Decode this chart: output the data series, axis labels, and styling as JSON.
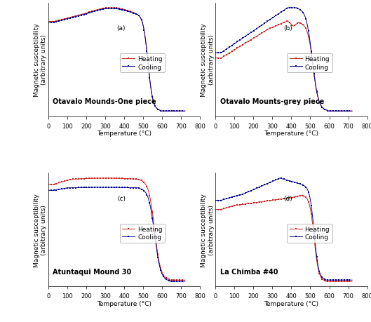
{
  "panels": [
    {
      "label": "(a)",
      "title": "Otavalo Mounds-One piece",
      "heating_color": "#cc2222",
      "cooling_color": "#00008b"
    },
    {
      "label": "(b)",
      "title": "Otavalo Mounts-grey piece",
      "heating_color": "#cc2222",
      "cooling_color": "#00008b"
    },
    {
      "label": "(c)",
      "title": "Atuntaqui Mound 30",
      "heating_color": "#cc2222",
      "cooling_color": "#00008b"
    },
    {
      "label": "(d)",
      "title": "La Chimba #40",
      "heating_color": "#cc2222",
      "cooling_color": "#00008b"
    }
  ],
  "xlabel": "Temperature (°C)",
  "ylabel": "Magnetic susceptibility\n(arbitrary units)",
  "xlim": [
    0,
    800
  ],
  "xticks": [
    0,
    100,
    200,
    300,
    400,
    500,
    600,
    700,
    800
  ],
  "legend_heating": "Heating",
  "legend_cooling": "Cooling",
  "background_color": "#ffffff",
  "title_fontsize": 7,
  "axis_label_fontsize": 6.5,
  "tick_fontsize": 6,
  "legend_fontsize": 6.5
}
